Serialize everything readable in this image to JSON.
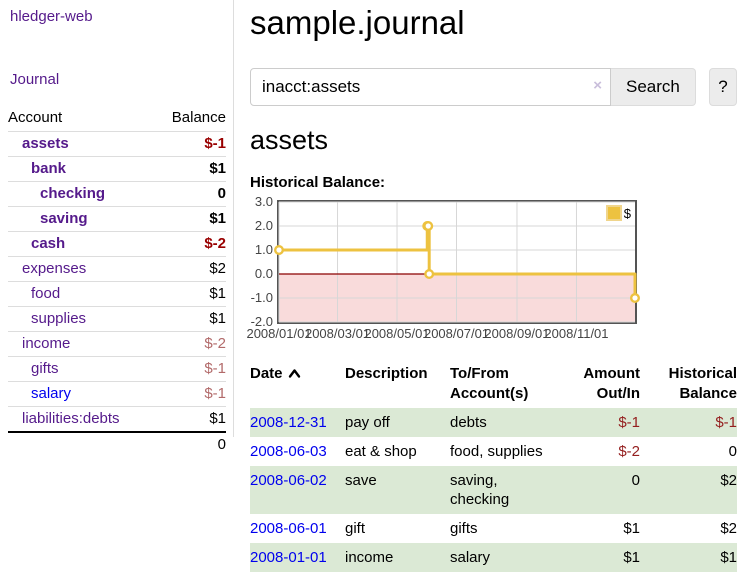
{
  "app": {
    "title": "hledger-web",
    "nav_journal": "Journal"
  },
  "sidebar": {
    "header": {
      "account": "Account",
      "balance": "Balance"
    },
    "accounts": [
      {
        "name": "assets",
        "indent": 1,
        "balance": "$-1",
        "bold": true,
        "neg": "strong",
        "link": "purple"
      },
      {
        "name": "bank",
        "indent": 2,
        "balance": "$1",
        "bold": true,
        "neg": "none",
        "link": "purple"
      },
      {
        "name": "checking",
        "indent": 3,
        "balance": "0",
        "bold": true,
        "neg": "none",
        "link": "purple"
      },
      {
        "name": "saving",
        "indent": 3,
        "balance": "$1",
        "bold": true,
        "neg": "none",
        "link": "purple"
      },
      {
        "name": "cash",
        "indent": 2,
        "balance": "$-2",
        "bold": true,
        "neg": "strong",
        "link": "purple"
      },
      {
        "name": "expenses",
        "indent": 1,
        "balance": "$2",
        "bold": false,
        "neg": "none",
        "link": "purple"
      },
      {
        "name": "food",
        "indent": 2,
        "balance": "$1",
        "bold": false,
        "neg": "none",
        "link": "purple"
      },
      {
        "name": "supplies",
        "indent": 2,
        "balance": "$1",
        "bold": false,
        "neg": "none",
        "link": "purple"
      },
      {
        "name": "income",
        "indent": 1,
        "balance": "$-2",
        "bold": false,
        "neg": "soft",
        "link": "purple"
      },
      {
        "name": "gifts",
        "indent": 2,
        "balance": "$-1",
        "bold": false,
        "neg": "soft",
        "link": "purple"
      },
      {
        "name": "salary",
        "indent": 2,
        "balance": "$-1",
        "bold": false,
        "neg": "soft",
        "link": "blue"
      },
      {
        "name": "liabilities:debts",
        "indent": 1,
        "balance": "$1",
        "bold": false,
        "neg": "none",
        "link": "purple"
      }
    ],
    "total": "0"
  },
  "main": {
    "title": "sample.journal",
    "search": {
      "value": "inacct:assets",
      "clear_icon": "×",
      "button": "Search",
      "help_button": "?"
    },
    "account_heading": "assets",
    "chart_label": "Historical Balance:"
  },
  "chart_data": {
    "type": "line",
    "title": "Historical Balance:",
    "xlim": [
      "2008-01-01",
      "2008-12-31"
    ],
    "ylim": [
      -2,
      3
    ],
    "y_ticks": [
      "3.0",
      "2.0",
      "1.0",
      "0.0",
      "-1.0",
      "-2.0"
    ],
    "y_tick_values": [
      3,
      2,
      1,
      0,
      -1,
      -2
    ],
    "x_ticks": [
      "2008/01/01",
      "2008/03/01",
      "2008/05/01",
      "2008/07/01",
      "2008/09/01",
      "2008/11/01"
    ],
    "x_tick_dates": [
      "2008-01-01",
      "2008-03-01",
      "2008-05-01",
      "2008-07-01",
      "2008-09-01",
      "2008-11-01"
    ],
    "grid": true,
    "legend_position": "top-right",
    "series": [
      {
        "name": "$",
        "color": "#edc240",
        "step": true,
        "points": [
          {
            "date": "2008-01-01",
            "value": 1
          },
          {
            "date": "2008-06-01",
            "value": 2
          },
          {
            "date": "2008-06-02",
            "value": 2
          },
          {
            "date": "2008-06-03",
            "value": 0
          },
          {
            "date": "2008-12-31",
            "value": -1
          }
        ]
      }
    ],
    "negative_fill": "#f9dbdb",
    "zero_line_color": "#8b0000",
    "grid_color": "#d7d7d7",
    "border_color": "#545454"
  },
  "register": {
    "headers": {
      "date": "Date",
      "description": "Description",
      "accounts": "To/From Account(s)",
      "amount": "Amount Out/In",
      "balance": "Historical Balance"
    },
    "sort": "ascending",
    "rows": [
      {
        "date": "2008-12-31",
        "description": "pay off",
        "accounts": "debts",
        "amount": "$-1",
        "balance": "$-1",
        "amount_neg": true,
        "balance_neg": true
      },
      {
        "date": "2008-06-03",
        "description": "eat & shop",
        "accounts": "food, supplies",
        "amount": "$-2",
        "balance": "0",
        "amount_neg": true,
        "balance_neg": false
      },
      {
        "date": "2008-06-02",
        "description": "save",
        "accounts": "saving, checking",
        "amount": "0",
        "balance": "$2",
        "amount_neg": false,
        "balance_neg": false
      },
      {
        "date": "2008-06-01",
        "description": "gift",
        "accounts": "gifts",
        "amount": "$1",
        "balance": "$2",
        "amount_neg": false,
        "balance_neg": false
      },
      {
        "date": "2008-01-01",
        "description": "income",
        "accounts": "salary",
        "amount": "$1",
        "balance": "$1",
        "amount_neg": false,
        "balance_neg": false
      }
    ]
  }
}
